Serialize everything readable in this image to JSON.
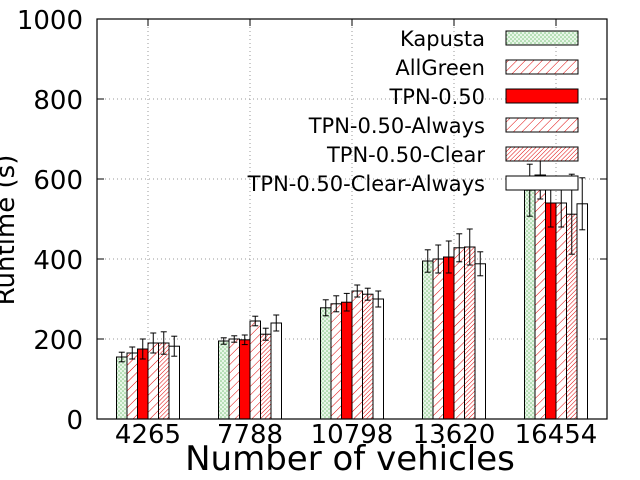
{
  "chart_data": {
    "type": "bar",
    "title": "",
    "xlabel": "Number of vehicles",
    "ylabel": "Runtime (s)",
    "ylim": [
      0,
      1000
    ],
    "yticks": [
      "0",
      "200",
      "400",
      "600",
      "800",
      "1000"
    ],
    "categories": [
      "4265",
      "7788",
      "10798",
      "13620",
      "16454"
    ],
    "grid": true,
    "legend_position": "top-right",
    "error_bars": true,
    "series": [
      {
        "name": "Kapusta",
        "color": "#d8f0d8",
        "pattern": "green-dots",
        "values": [
          155,
          195,
          278,
          395,
          572
        ],
        "errors": [
          12,
          8,
          20,
          28,
          65
        ]
      },
      {
        "name": "AllGreen",
        "color": "#e00000",
        "pattern": "sparse-hatch",
        "values": [
          165,
          200,
          288,
          400,
          610
        ],
        "errors": [
          15,
          8,
          20,
          35,
          60
        ]
      },
      {
        "name": "TPN-0.50",
        "color": "#ff0000",
        "pattern": "solid",
        "values": [
          175,
          198,
          292,
          405,
          540
        ],
        "errors": [
          25,
          12,
          22,
          40,
          60
        ]
      },
      {
        "name": "TPN-0.50-Always",
        "color": "#e00000",
        "pattern": "sparse-hatch",
        "values": [
          190,
          245,
          320,
          428,
          540
        ],
        "errors": [
          25,
          12,
          15,
          35,
          60
        ]
      },
      {
        "name": "TPN-0.50-Clear",
        "color": "#e00000",
        "pattern": "dense-hatch",
        "values": [
          190,
          212,
          312,
          430,
          512
        ],
        "errors": [
          28,
          15,
          15,
          45,
          100
        ]
      },
      {
        "name": "TPN-0.50-Clear-Always",
        "color": "#ffffff",
        "pattern": "empty",
        "values": [
          182,
          240,
          300,
          388,
          538
        ],
        "errors": [
          25,
          20,
          20,
          30,
          65
        ]
      }
    ]
  }
}
